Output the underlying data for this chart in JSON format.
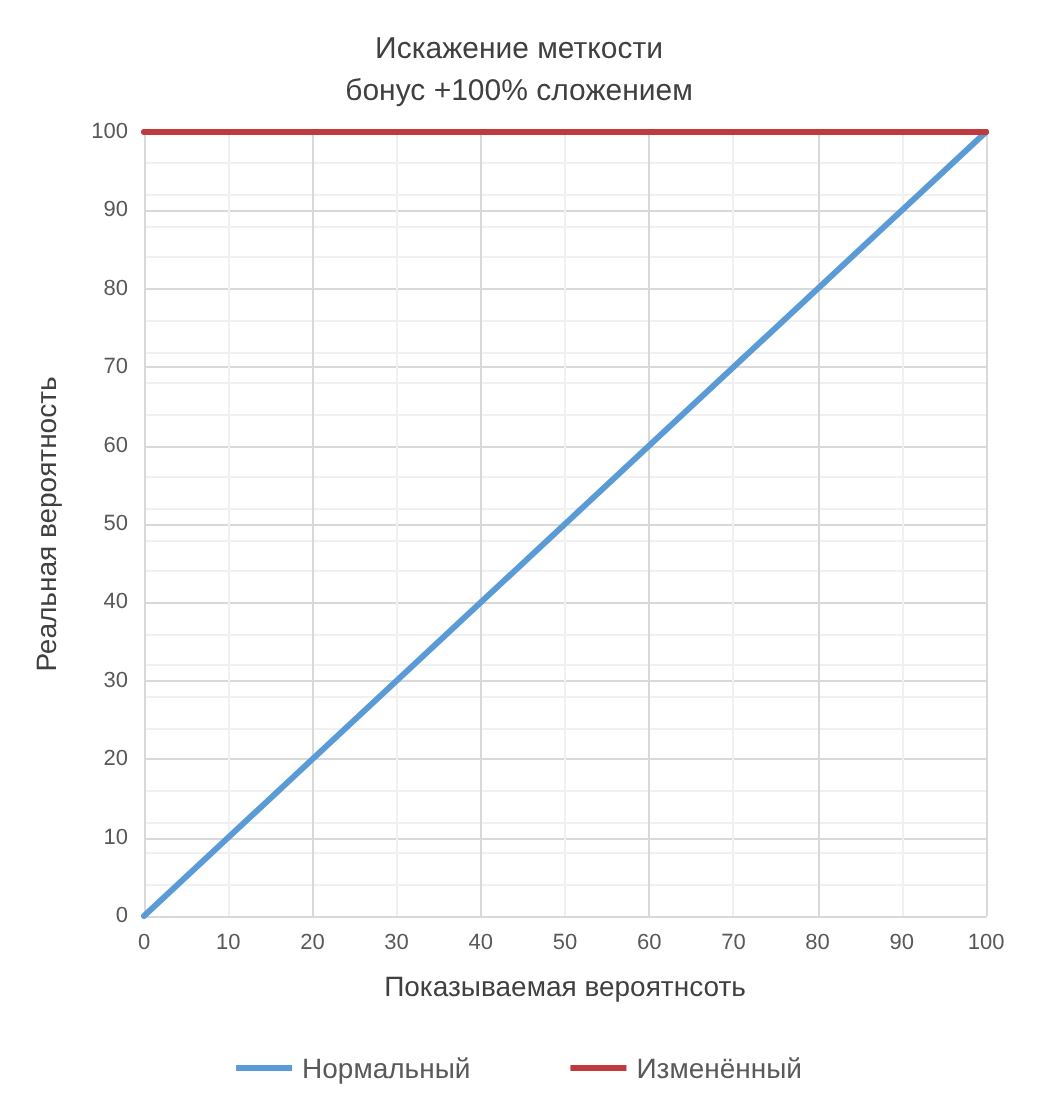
{
  "chart_data": {
    "type": "line",
    "title": "Искажение меткости",
    "subtitle": "бонус +100% сложением",
    "xlabel": "Показываемая вероятнсоть",
    "ylabel": "Реальная вероятность",
    "x": [
      0,
      100
    ],
    "series": [
      {
        "name": "Нормальный",
        "color": "#5b9bd5",
        "values": [
          0,
          100
        ]
      },
      {
        "name": "Изменённый",
        "color": "#c0393b",
        "values": [
          100,
          100
        ]
      }
    ],
    "xlim": [
      0,
      100
    ],
    "xticks": [
      0,
      10,
      20,
      30,
      40,
      50,
      60,
      70,
      80,
      90,
      100
    ],
    "ylim": [
      0,
      100
    ],
    "yticks": [
      0,
      10,
      20,
      30,
      40,
      50,
      60,
      70,
      80,
      90,
      100
    ],
    "grid": true,
    "legend": "bottom",
    "marker": "none",
    "line_style": "solid"
  }
}
